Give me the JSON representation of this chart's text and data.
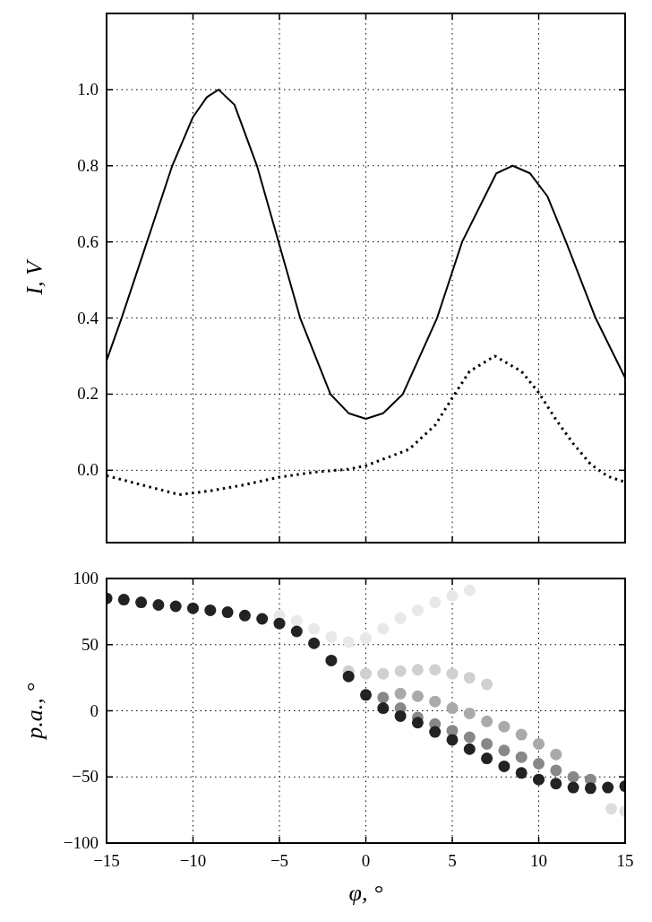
{
  "chart_data": [
    {
      "type": "line",
      "ylabel": "I, V",
      "xlim": [
        -15,
        15
      ],
      "ylim": [
        -0.19,
        1.2
      ],
      "xticks": [
        -15,
        -10,
        -5,
        0,
        5,
        10,
        15
      ],
      "yticks": [
        {
          "value": 0,
          "label": "0.0"
        },
        0.2,
        0.4,
        0.6,
        0.8,
        {
          "value": 1,
          "label": "1.0"
        }
      ],
      "grid": true,
      "tick_labels": "y",
      "marker": "none",
      "series": [
        {
          "color": "#000000",
          "line_style": "solid",
          "x": [
            -15,
            -14.13,
            -12.66,
            -11.2,
            -10,
            -9.2,
            -8.52,
            -7.6,
            -6.3,
            -5.05,
            -3.8,
            -2.05,
            -1,
            0,
            1,
            2.14,
            4.12,
            5.57,
            7.55,
            8.49,
            9.5,
            10.5,
            11.58,
            13.29,
            15
          ],
          "values": [
            0.288,
            0.4,
            0.6,
            0.8,
            0.928,
            0.98,
            1.0,
            0.96,
            0.8,
            0.6,
            0.4,
            0.2,
            0.15,
            0.135,
            0.15,
            0.2,
            0.4,
            0.6,
            0.78,
            0.8,
            0.78,
            0.72,
            0.6,
            0.4,
            0.243
          ]
        },
        {
          "color": "#000000",
          "line_style": "dotted",
          "x": [
            -15,
            -13,
            -10.8,
            -9,
            -7,
            -5,
            -3,
            -1,
            0,
            2.5,
            4,
            5,
            6,
            7.46,
            9,
            10,
            11,
            12,
            13,
            14,
            15
          ],
          "values": [
            -0.014,
            -0.038,
            -0.064,
            -0.054,
            -0.038,
            -0.018,
            -0.005,
            0.003,
            0.012,
            0.055,
            0.118,
            0.19,
            0.26,
            0.3,
            0.26,
            0.204,
            0.133,
            0.07,
            0.016,
            -0.016,
            -0.031
          ]
        }
      ]
    },
    {
      "type": "scatter",
      "xlabel": "φ, °",
      "ylabel": "p.a., °",
      "xlim": [
        -15,
        15
      ],
      "ylim": [
        -100,
        100
      ],
      "xticks": [
        {
          "value": -15,
          "label": "−15"
        },
        {
          "value": -10,
          "label": "−10"
        },
        {
          "value": -5,
          "label": "−5"
        },
        0,
        5,
        10,
        15
      ],
      "yticks": [
        {
          "value": -100,
          "label": "−100"
        },
        {
          "value": -50,
          "label": "−50"
        },
        0,
        50,
        100
      ],
      "grid": true,
      "marker": "circle",
      "series": [
        {
          "color": "#e8e8e8",
          "x": [
            -5,
            -4,
            -3,
            -2,
            -1,
            0,
            1,
            2,
            3,
            4,
            5,
            6
          ],
          "values": [
            72,
            68,
            62,
            56,
            52,
            55,
            62,
            70,
            76,
            82,
            87,
            91
          ]
        },
        {
          "color": "#d0d0d0",
          "x": [
            -1,
            0,
            1,
            2,
            3,
            4,
            5,
            6,
            7
          ],
          "values": [
            30,
            28,
            28,
            30,
            31,
            31,
            28,
            25,
            20
          ]
        },
        {
          "color": "#aaaaaa",
          "x": [
            2,
            3,
            4,
            5,
            6,
            7,
            8,
            9,
            10,
            11
          ],
          "values": [
            13,
            11,
            7,
            2,
            -2,
            -8,
            -12,
            -18,
            -25,
            -33
          ]
        },
        {
          "color": "#888888",
          "x": [
            1,
            2,
            3,
            4,
            5,
            6,
            7,
            8,
            9,
            10,
            11,
            12,
            13
          ],
          "values": [
            10,
            2,
            -5,
            -10,
            -15,
            -20,
            -25,
            -30,
            -35,
            -40,
            -45,
            -50,
            -52
          ]
        },
        {
          "color": "#222222",
          "x": [
            -15,
            -14,
            -13,
            -12,
            -11,
            -10,
            -9,
            -8,
            -7,
            -6,
            -5,
            -4,
            -3,
            -2,
            -1,
            0,
            1,
            2,
            3,
            4,
            5,
            6,
            7,
            8,
            9,
            10,
            11,
            12,
            13,
            14,
            15
          ],
          "values": [
            85,
            84,
            82,
            80,
            79,
            77.5,
            76,
            74.5,
            72,
            69.5,
            66,
            60,
            51,
            38,
            26,
            12,
            2,
            -4,
            -9,
            -16,
            -22,
            -29,
            -36,
            -42,
            -47,
            -52,
            -55,
            -58,
            -58.5,
            -58,
            -57
          ]
        },
        {
          "color": "#dddddd",
          "x": [
            14.2,
            15
          ],
          "values": [
            -74,
            -76
          ]
        }
      ]
    }
  ]
}
